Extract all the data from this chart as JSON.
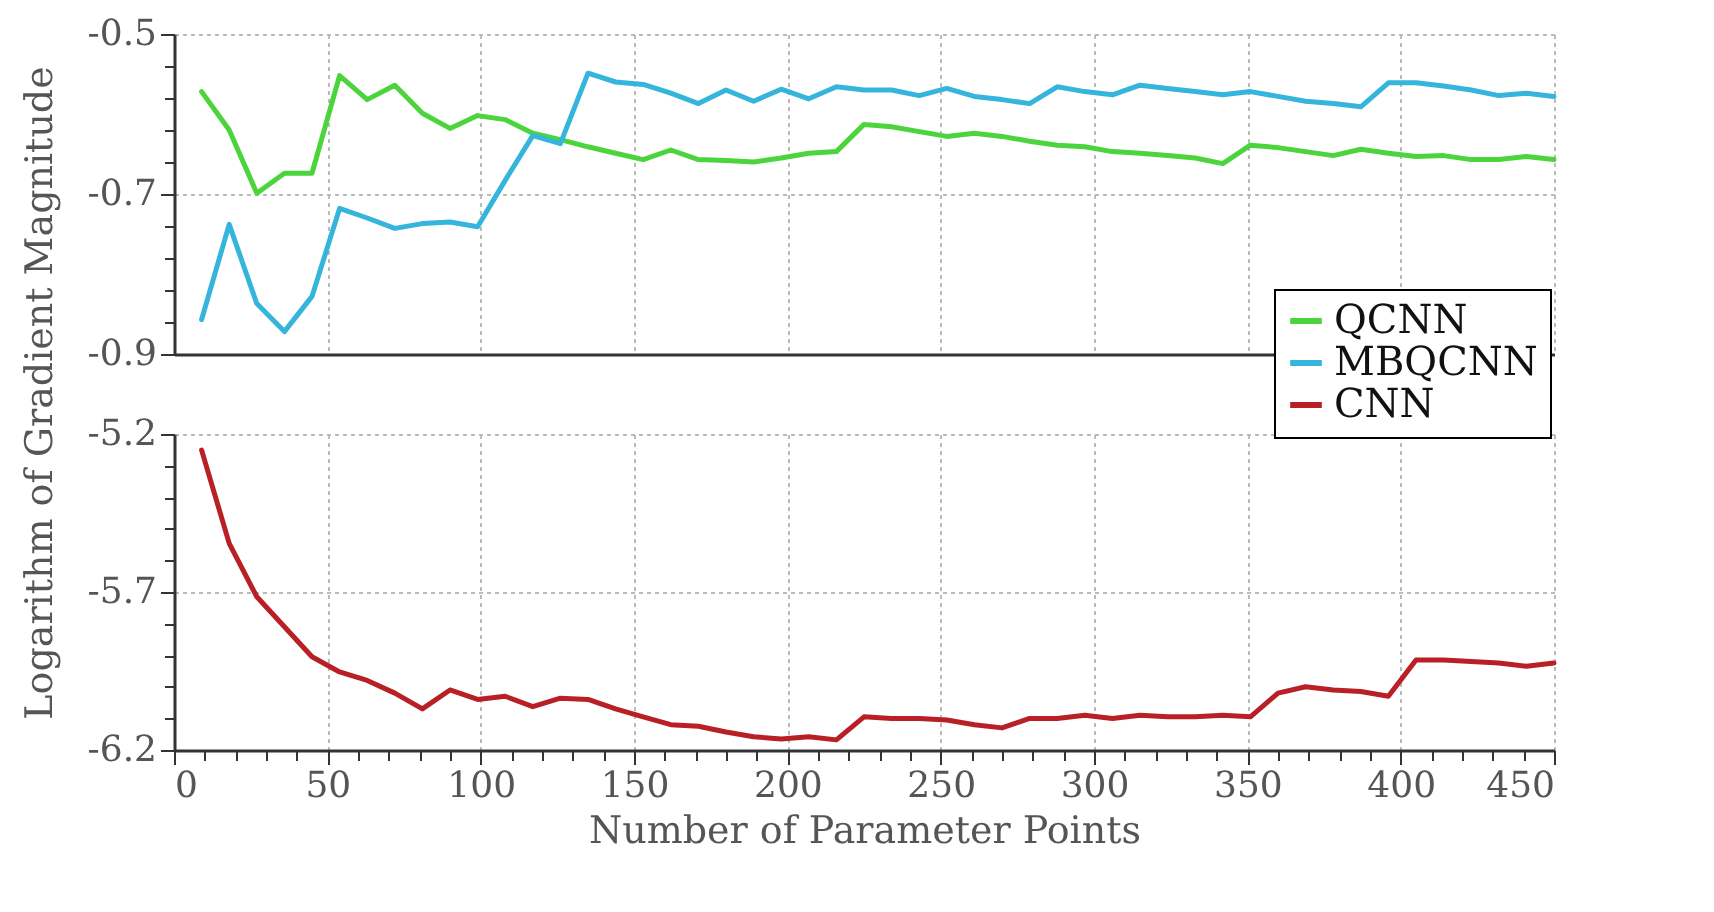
{
  "chart_data": [
    {
      "type": "line",
      "x": [
        9,
        18,
        27,
        36,
        45,
        54,
        63,
        72,
        81,
        90,
        99,
        108,
        117,
        126,
        135,
        144,
        153,
        162,
        171,
        180,
        189,
        198,
        207,
        216,
        225,
        234,
        243,
        252,
        261,
        270,
        279,
        288,
        297,
        306,
        315,
        324,
        333,
        342,
        351,
        360,
        369,
        378,
        387,
        396,
        405,
        414,
        423,
        432,
        441,
        450
      ],
      "series": [
        {
          "name": "QCNN",
          "color": "#4cd43c",
          "values": [
            -0.572,
            -0.62,
            -0.699,
            -0.674,
            -0.674,
            -0.552,
            -0.582,
            -0.564,
            -0.599,
            -0.618,
            -0.602,
            -0.607,
            -0.624,
            -0.632,
            -0.641,
            -0.649,
            -0.657,
            -0.645,
            -0.657,
            -0.658,
            -0.66,
            -0.655,
            -0.649,
            -0.647,
            -0.613,
            -0.616,
            -0.622,
            -0.628,
            -0.624,
            -0.628,
            -0.634,
            -0.639,
            -0.641,
            -0.647,
            -0.649,
            -0.652,
            -0.655,
            -0.662,
            -0.639,
            -0.642,
            -0.647,
            -0.652,
            -0.644,
            -0.649,
            -0.653,
            -0.652,
            -0.657,
            -0.657,
            -0.653,
            -0.657
          ]
        },
        {
          "name": "MBQCNN",
          "color": "#35b5dc",
          "values": [
            -0.857,
            -0.738,
            -0.837,
            -0.872,
            -0.828,
            -0.718,
            -0.73,
            -0.743,
            -0.737,
            -0.735,
            -0.741,
            -0.683,
            -0.627,
            -0.637,
            -0.549,
            -0.56,
            -0.563,
            -0.574,
            -0.587,
            -0.57,
            -0.584,
            -0.569,
            -0.581,
            -0.566,
            -0.57,
            -0.57,
            -0.577,
            -0.568,
            -0.578,
            -0.582,
            -0.587,
            -0.566,
            -0.572,
            -0.576,
            -0.564,
            -0.568,
            -0.572,
            -0.576,
            -0.572,
            -0.578,
            -0.584,
            -0.587,
            -0.591,
            -0.561,
            -0.561,
            -0.565,
            -0.57,
            -0.577,
            -0.574,
            -0.578
          ]
        }
      ],
      "xlim": [
        0,
        450
      ],
      "xticks": [
        0,
        50,
        100,
        150,
        200,
        250,
        300,
        350,
        400,
        450
      ],
      "ylim": [
        -0.9,
        -0.5
      ],
      "yticks": [
        -0.5,
        {
          "value": -0.54,
          "label": null
        },
        {
          "value": -0.58,
          "label": null
        },
        {
          "value": -0.62,
          "label": null
        },
        {
          "value": -0.66,
          "label": null
        },
        -0.7,
        {
          "value": -0.74,
          "label": null
        },
        {
          "value": -0.78,
          "label": null
        },
        {
          "value": -0.82,
          "label": null
        },
        {
          "value": -0.86,
          "label": null
        },
        -0.9
      ],
      "grid": true,
      "tick_labels": "y",
      "legend": "bottom right",
      "line_style": "solid"
    },
    {
      "type": "line",
      "x": [
        9,
        18,
        27,
        36,
        45,
        54,
        63,
        72,
        81,
        90,
        99,
        108,
        117,
        126,
        135,
        144,
        153,
        162,
        171,
        180,
        189,
        198,
        207,
        216,
        225,
        234,
        243,
        252,
        261,
        270,
        279,
        288,
        297,
        306,
        315,
        324,
        333,
        342,
        351,
        360,
        369,
        378,
        387,
        396,
        405,
        414,
        423,
        432,
        441,
        450
      ],
      "series": [
        {
          "name": "CNN",
          "color": "#b82025",
          "values": [
            -5.251,
            -5.546,
            -5.715,
            -5.81,
            -5.905,
            -5.953,
            -5.98,
            -6.02,
            -6.07,
            -6.01,
            -6.04,
            -6.03,
            -6.063,
            -6.036,
            -6.04,
            -6.07,
            -6.095,
            -6.12,
            -6.125,
            -6.143,
            -6.158,
            -6.165,
            -6.158,
            -6.168,
            -6.095,
            -6.1,
            -6.1,
            -6.105,
            -6.12,
            -6.13,
            -6.1,
            -6.1,
            -6.09,
            -6.1,
            -6.09,
            -6.095,
            -6.095,
            -6.09,
            -6.095,
            -6.02,
            -6.0,
            -6.01,
            -6.015,
            -6.03,
            -5.915,
            -5.915,
            -5.92,
            -5.925,
            -5.935,
            -5.925
          ]
        }
      ],
      "xlabel": "Number of Parameter Points",
      "ylabel": "Logarithm of Gradient Magnitude",
      "xlim": [
        0,
        450
      ],
      "xticks": [
        0,
        {
          "value": 10,
          "label": null
        },
        {
          "value": 20,
          "label": null
        },
        {
          "value": 30,
          "label": null
        },
        {
          "value": 40,
          "label": null
        },
        50,
        {
          "value": 60,
          "label": null
        },
        {
          "value": 70,
          "label": null
        },
        {
          "value": 80,
          "label": null
        },
        {
          "value": 90,
          "label": null
        },
        100,
        {
          "value": 110,
          "label": null
        },
        {
          "value": 120,
          "label": null
        },
        {
          "value": 130,
          "label": null
        },
        {
          "value": 140,
          "label": null
        },
        150,
        {
          "value": 160,
          "label": null
        },
        {
          "value": 170,
          "label": null
        },
        {
          "value": 180,
          "label": null
        },
        {
          "value": 190,
          "label": null
        },
        200,
        {
          "value": 210,
          "label": null
        },
        {
          "value": 220,
          "label": null
        },
        {
          "value": 230,
          "label": null
        },
        {
          "value": 240,
          "label": null
        },
        250,
        {
          "value": 260,
          "label": null
        },
        {
          "value": 270,
          "label": null
        },
        {
          "value": 280,
          "label": null
        },
        {
          "value": 290,
          "label": null
        },
        300,
        {
          "value": 310,
          "label": null
        },
        {
          "value": 320,
          "label": null
        },
        {
          "value": 330,
          "label": null
        },
        {
          "value": 340,
          "label": null
        },
        350,
        {
          "value": 360,
          "label": null
        },
        {
          "value": 370,
          "label": null
        },
        {
          "value": 380,
          "label": null
        },
        {
          "value": 390,
          "label": null
        },
        400,
        {
          "value": 410,
          "label": null
        },
        {
          "value": 420,
          "label": null
        },
        {
          "value": 430,
          "label": null
        },
        {
          "value": 440,
          "label": null
        },
        450
      ],
      "ylim": [
        -6.2,
        -5.2
      ],
      "yticks": [
        -5.2,
        {
          "value": -5.3,
          "label": null
        },
        {
          "value": -5.4,
          "label": null
        },
        {
          "value": -5.5,
          "label": null
        },
        {
          "value": -5.6,
          "label": null
        },
        -5.7,
        {
          "value": -5.8,
          "label": null
        },
        {
          "value": -5.9,
          "label": null
        },
        {
          "value": -6.0,
          "label": null
        },
        {
          "value": -6.1,
          "label": null
        },
        -6.2
      ],
      "grid": true,
      "legend": "top right",
      "line_style": "solid"
    }
  ]
}
